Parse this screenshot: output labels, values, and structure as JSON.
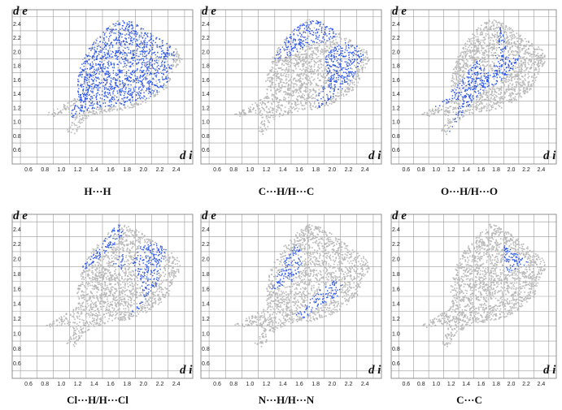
{
  "figure": {
    "type": "hirshfeld-fingerprint-plots",
    "colors": {
      "background_cloud": "#b9b9b9",
      "highlight": "#2a55e8",
      "grid": "#9a9a9a"
    }
  },
  "chart_data": [
    {
      "type": "scatter",
      "label": "H···H",
      "xlabel": "d i",
      "ylabel": "d e",
      "xticks": [
        "0.6",
        "0.8",
        "1.0",
        "1.2",
        "1.4",
        "1.6",
        "1.8",
        "2.0",
        "2.2",
        "2.4"
      ],
      "yticks": [
        "0.6",
        "0.8",
        "1.0",
        "1.2",
        "1.4",
        "1.6",
        "1.8",
        "2.0",
        "2.2",
        "2.4"
      ],
      "xlim": [
        0.4,
        2.6
      ],
      "ylim": [
        0.4,
        2.6
      ],
      "grid": true,
      "highlight": "H···H contacts"
    },
    {
      "type": "scatter",
      "label": "C···H/H···C",
      "xlabel": "d i",
      "ylabel": "d e",
      "xticks": [
        "0.6",
        "0.8",
        "1.0",
        "1.2",
        "1.4",
        "1.6",
        "1.8",
        "2.0",
        "2.2",
        "2.4"
      ],
      "yticks": [
        "0.6",
        "0.8",
        "1.0",
        "1.2",
        "1.4",
        "1.6",
        "1.8",
        "2.0",
        "2.2",
        "2.4"
      ],
      "xlim": [
        0.4,
        2.6
      ],
      "ylim": [
        0.4,
        2.6
      ],
      "grid": true,
      "highlight": "C···H/H···C contacts"
    },
    {
      "type": "scatter",
      "label": "O···H/H···O",
      "xlabel": "d i",
      "ylabel": "d e",
      "xticks": [
        "0.6",
        "0.8",
        "1.0",
        "1.2",
        "1.4",
        "1.6",
        "1.8",
        "2.0",
        "2.2",
        "2.4"
      ],
      "yticks": [
        "0.6",
        "0.8",
        "1.0",
        "1.2",
        "1.4",
        "1.6",
        "1.8",
        "2.0",
        "2.2",
        "2.4"
      ],
      "xlim": [
        0.4,
        2.6
      ],
      "ylim": [
        0.4,
        2.6
      ],
      "grid": true,
      "highlight": "O···H/H···O contacts"
    },
    {
      "type": "scatter",
      "label": "Cl···H/H···Cl",
      "xlabel": "d i",
      "ylabel": "d e",
      "xticks": [
        "0.6",
        "0.8",
        "1.0",
        "1.2",
        "1.4",
        "1.6",
        "1.8",
        "2.0",
        "2.2",
        "2.4"
      ],
      "yticks": [
        "0.6",
        "0.8",
        "1.0",
        "1.2",
        "1.4",
        "1.6",
        "1.8",
        "2.0",
        "2.2",
        "2.4"
      ],
      "xlim": [
        0.4,
        2.6
      ],
      "ylim": [
        0.4,
        2.6
      ],
      "grid": true,
      "highlight": "Cl···H/H···Cl contacts"
    },
    {
      "type": "scatter",
      "label": "N···H/H···N",
      "xlabel": "d i",
      "ylabel": "d e",
      "xticks": [
        "0.6",
        "0.8",
        "1.0",
        "1.2",
        "1.4",
        "1.6",
        "1.8",
        "2.0",
        "2.2",
        "2.4"
      ],
      "yticks": [
        "0.6",
        "0.8",
        "1.0",
        "1.2",
        "1.4",
        "1.6",
        "1.8",
        "2.0",
        "2.2",
        "2.4"
      ],
      "xlim": [
        0.4,
        2.6
      ],
      "ylim": [
        0.4,
        2.6
      ],
      "grid": true,
      "highlight": "N···H/H···N contacts"
    },
    {
      "type": "scatter",
      "label": "C···C",
      "xlabel": "d i",
      "ylabel": "d e",
      "xticks": [
        "0.6",
        "0.8",
        "1.0",
        "1.2",
        "1.4",
        "1.6",
        "1.8",
        "2.0",
        "2.2",
        "2.4"
      ],
      "yticks": [
        "0.6",
        "0.8",
        "1.0",
        "1.2",
        "1.4",
        "1.6",
        "1.8",
        "2.0",
        "2.2",
        "2.4"
      ],
      "xlim": [
        0.4,
        2.6
      ],
      "ylim": [
        0.4,
        2.6
      ],
      "grid": true,
      "highlight": "C···C contacts"
    }
  ]
}
